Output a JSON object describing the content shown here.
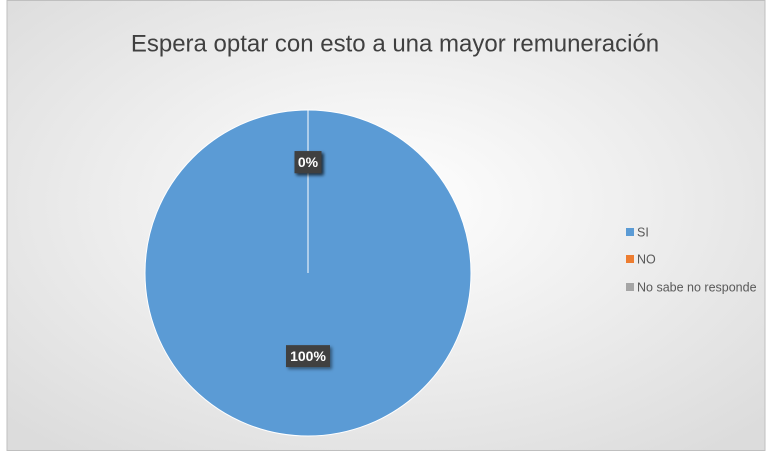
{
  "chart_data": {
    "type": "pie",
    "title": "Espera optar con esto a una mayor remuneración",
    "categories": [
      "SI",
      "NO",
      "No sabe no responde"
    ],
    "values": [
      100,
      0,
      0
    ],
    "value_labels": [
      "100%",
      "0%",
      "0%"
    ],
    "colors": [
      "#5b9bd5",
      "#ed7d31",
      "#a5a5a5"
    ],
    "legend": "right"
  }
}
